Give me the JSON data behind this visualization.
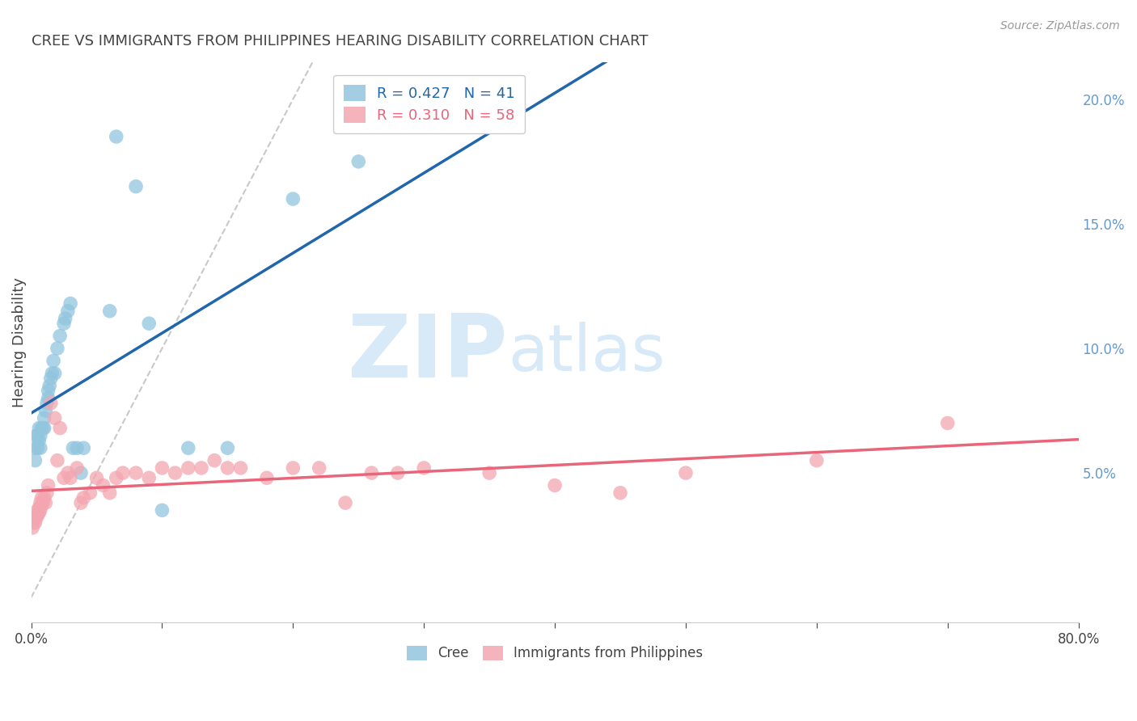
{
  "title": "CREE VS IMMIGRANTS FROM PHILIPPINES HEARING DISABILITY CORRELATION CHART",
  "source": "Source: ZipAtlas.com",
  "xlabel": "",
  "ylabel": "Hearing Disability",
  "xlim": [
    0.0,
    0.8
  ],
  "ylim": [
    -0.01,
    0.215
  ],
  "xticks": [
    0.0,
    0.1,
    0.2,
    0.3,
    0.4,
    0.5,
    0.6,
    0.7,
    0.8
  ],
  "xtick_labels": [
    "0.0%",
    "",
    "",
    "",
    "",
    "",
    "",
    "",
    "80.0%"
  ],
  "yticks_right": [
    0.05,
    0.1,
    0.15,
    0.2
  ],
  "ytick_right_labels": [
    "5.0%",
    "10.0%",
    "15.0%",
    "20.0%"
  ],
  "cree_color": "#92c5de",
  "philippines_color": "#f4a6b0",
  "cree_R": 0.427,
  "cree_N": 41,
  "philippines_R": 0.31,
  "philippines_N": 58,
  "legend_label_cree": "Cree",
  "legend_label_philippines": "Immigrants from Philippines",
  "cree_x": [
    0.003,
    0.003,
    0.004,
    0.005,
    0.005,
    0.006,
    0.006,
    0.007,
    0.007,
    0.008,
    0.009,
    0.01,
    0.01,
    0.011,
    0.012,
    0.013,
    0.013,
    0.014,
    0.015,
    0.016,
    0.017,
    0.018,
    0.02,
    0.022,
    0.025,
    0.026,
    0.028,
    0.03,
    0.032,
    0.035,
    0.038,
    0.04,
    0.06,
    0.065,
    0.08,
    0.09,
    0.1,
    0.12,
    0.15,
    0.2,
    0.25
  ],
  "cree_y": [
    0.055,
    0.06,
    0.065,
    0.06,
    0.065,
    0.063,
    0.068,
    0.06,
    0.065,
    0.068,
    0.068,
    0.072,
    0.068,
    0.075,
    0.078,
    0.08,
    0.083,
    0.085,
    0.088,
    0.09,
    0.095,
    0.09,
    0.1,
    0.105,
    0.11,
    0.112,
    0.115,
    0.118,
    0.06,
    0.06,
    0.05,
    0.06,
    0.115,
    0.185,
    0.165,
    0.11,
    0.035,
    0.06,
    0.06,
    0.16,
    0.175
  ],
  "philippines_x": [
    0.001,
    0.002,
    0.002,
    0.003,
    0.003,
    0.004,
    0.004,
    0.005,
    0.005,
    0.006,
    0.006,
    0.007,
    0.007,
    0.008,
    0.008,
    0.009,
    0.01,
    0.011,
    0.012,
    0.013,
    0.015,
    0.018,
    0.02,
    0.022,
    0.025,
    0.028,
    0.03,
    0.035,
    0.038,
    0.04,
    0.045,
    0.05,
    0.055,
    0.06,
    0.065,
    0.07,
    0.08,
    0.09,
    0.1,
    0.11,
    0.12,
    0.13,
    0.14,
    0.15,
    0.16,
    0.18,
    0.2,
    0.22,
    0.24,
    0.26,
    0.28,
    0.3,
    0.35,
    0.4,
    0.45,
    0.5,
    0.6,
    0.7
  ],
  "philippines_y": [
    0.028,
    0.03,
    0.032,
    0.03,
    0.032,
    0.033,
    0.032,
    0.033,
    0.035,
    0.034,
    0.036,
    0.035,
    0.038,
    0.037,
    0.04,
    0.038,
    0.04,
    0.038,
    0.042,
    0.045,
    0.078,
    0.072,
    0.055,
    0.068,
    0.048,
    0.05,
    0.048,
    0.052,
    0.038,
    0.04,
    0.042,
    0.048,
    0.045,
    0.042,
    0.048,
    0.05,
    0.05,
    0.048,
    0.052,
    0.05,
    0.052,
    0.052,
    0.055,
    0.052,
    0.052,
    0.048,
    0.052,
    0.052,
    0.038,
    0.05,
    0.05,
    0.052,
    0.05,
    0.045,
    0.042,
    0.05,
    0.055,
    0.07
  ],
  "background_color": "#ffffff",
  "grid_color": "#dddddd",
  "title_color": "#444444",
  "axis_tick_color": "#6699cc",
  "watermark_ZIP": "ZIP",
  "watermark_atlas": "atlas",
  "watermark_color": "#d8eaf7",
  "cree_line_color": "#2166ac",
  "philippines_line_color": "#e8657a",
  "diagonal_color": "#bbbbbb"
}
